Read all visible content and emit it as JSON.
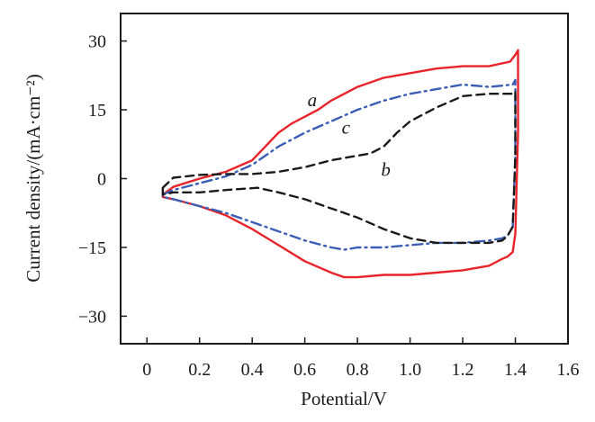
{
  "chart_data": {
    "type": "line",
    "title": "",
    "xlabel": "Potential/V",
    "ylabel": "Current density/(mA·cm⁻²)",
    "xlim": [
      -0.1,
      1.6
    ],
    "ylim": [
      -36,
      36
    ],
    "x_ticks": [
      0,
      0.2,
      0.4,
      0.6,
      0.8,
      1.0,
      1.2,
      1.4,
      1.6
    ],
    "x_tick_labels": [
      "0",
      "0.2",
      "0.4",
      "0.6",
      "0.8",
      "1.0",
      "1.2",
      "1.4",
      "1.6"
    ],
    "y_ticks": [
      -30,
      -15,
      0,
      15,
      30
    ],
    "y_tick_labels": [
      "−30",
      "−15",
      "0",
      "15",
      "30"
    ],
    "grid": false,
    "series": [
      {
        "name": "a",
        "color": "#e8242a",
        "dash": "solid",
        "label_pos": [
          0.61,
          15.8
        ],
        "x": [
          0.06,
          0.1,
          0.2,
          0.3,
          0.4,
          0.45,
          0.5,
          0.55,
          0.6,
          0.65,
          0.7,
          0.8,
          0.9,
          1.0,
          1.1,
          1.2,
          1.3,
          1.38,
          1.4,
          1.41,
          1.41,
          1.4,
          1.39,
          1.37,
          1.35,
          1.3,
          1.2,
          1.1,
          1.0,
          0.9,
          0.8,
          0.75,
          0.7,
          0.6,
          0.5,
          0.4,
          0.3,
          0.2,
          0.1,
          0.06,
          0.06
        ],
        "y": [
          -3.5,
          -1.8,
          0,
          1.5,
          4,
          7,
          10,
          12,
          13.5,
          15,
          17,
          20,
          22,
          23,
          24,
          24.5,
          24.5,
          25.5,
          27,
          28,
          10,
          -12,
          -16,
          -17,
          -17.5,
          -19,
          -20,
          -20.5,
          -21,
          -21,
          -21.5,
          -21.5,
          -20.5,
          -18,
          -14.5,
          -11,
          -8,
          -6,
          -4.5,
          -4,
          -3.5
        ]
      },
      {
        "name": "c",
        "color": "#3a5eb5",
        "dash": "dashdot",
        "label_pos": [
          0.74,
          9.8
        ],
        "x": [
          0.06,
          0.1,
          0.2,
          0.3,
          0.4,
          0.5,
          0.6,
          0.7,
          0.8,
          0.9,
          1.0,
          1.1,
          1.2,
          1.3,
          1.39,
          1.4,
          1.4,
          1.39,
          1.37,
          1.35,
          1.3,
          1.2,
          1.1,
          1.0,
          0.9,
          0.8,
          0.75,
          0.7,
          0.6,
          0.5,
          0.4,
          0.3,
          0.2,
          0.1,
          0.06,
          0.06
        ],
        "y": [
          -3.5,
          -2.5,
          -1,
          0.5,
          3,
          7,
          10,
          12.5,
          15,
          17,
          18.5,
          19.5,
          20.5,
          20,
          20.5,
          21.5,
          5,
          -10.5,
          -12.5,
          -13,
          -13.5,
          -14,
          -14,
          -14.5,
          -15,
          -15,
          -15.5,
          -15,
          -13.5,
          -11.5,
          -9.5,
          -7.5,
          -6,
          -4.5,
          -4,
          -3.5
        ]
      },
      {
        "name": "b",
        "color": "#1a1a1a",
        "dash": "dashed",
        "label_pos": [
          0.89,
          0.6
        ],
        "x": [
          0.06,
          0.1,
          0.2,
          0.3,
          0.4,
          0.5,
          0.6,
          0.7,
          0.8,
          0.85,
          0.9,
          0.95,
          1.0,
          1.1,
          1.2,
          1.3,
          1.39,
          1.4,
          1.4,
          1.39,
          1.37,
          1.35,
          1.3,
          1.2,
          1.1,
          1.0,
          0.9,
          0.8,
          0.7,
          0.6,
          0.5,
          0.42,
          0.3,
          0.2,
          0.1,
          0.06,
          0.06
        ],
        "y": [
          -2,
          0.2,
          0.8,
          1,
          1,
          1.5,
          2.5,
          4,
          5,
          5.5,
          7,
          10,
          12.5,
          15.5,
          18,
          18.5,
          18.5,
          19,
          5,
          -10.5,
          -12.5,
          -13.5,
          -14,
          -14,
          -14,
          -13,
          -11,
          -8.5,
          -6.5,
          -4.5,
          -3,
          -2,
          -2.5,
          -3,
          -3,
          -3.5,
          -2
        ]
      }
    ]
  }
}
